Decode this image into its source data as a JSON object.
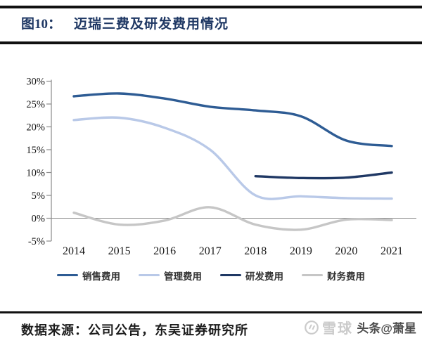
{
  "header": {
    "figure_label": "图10：",
    "title": "迈瑞三费及研发费用情况"
  },
  "chart_data": {
    "type": "line",
    "title": "迈瑞三费及研发费用情况",
    "categories": [
      "2014",
      "2015",
      "2016",
      "2017",
      "2018",
      "2019",
      "2020",
      "2021"
    ],
    "y_ticks": [
      30,
      25,
      20,
      15,
      10,
      5,
      0,
      -5
    ],
    "y_tick_labels": [
      "30%",
      "25%",
      "20%",
      "15%",
      "10%",
      "5%",
      "0%",
      "-5%"
    ],
    "ylim": [
      -5,
      30
    ],
    "unit": "percent",
    "grid": false,
    "zero_line": true,
    "legend_position": "bottom",
    "axis_color": "#8a8a8a",
    "tick_label_color": "#1a1a1a",
    "series": [
      {
        "id": "sales",
        "name": "销售费用",
        "color": "#2E5C94",
        "values": [
          26.7,
          27.3,
          26.2,
          24.4,
          23.6,
          22.3,
          17.0,
          15.8
        ]
      },
      {
        "id": "management",
        "name": "管理费用",
        "color": "#B9C9E8",
        "values": [
          21.5,
          22.0,
          19.8,
          15.0,
          5.0,
          4.8,
          4.4,
          4.3
        ]
      },
      {
        "id": "rd",
        "name": "研发费用",
        "color": "#1F3864",
        "values": [
          null,
          null,
          null,
          null,
          9.2,
          8.8,
          8.9,
          10.0
        ]
      },
      {
        "id": "finance",
        "name": "财务费用",
        "color": "#C6C6C6",
        "values": [
          1.2,
          -1.4,
          -0.5,
          2.4,
          -1.4,
          -2.5,
          -0.3,
          -0.4
        ]
      }
    ]
  },
  "footer": {
    "source": "数据来源：公司公告，东吴证券研究所"
  },
  "watermark": {
    "icon": "xueqiu-logo",
    "brand": "雪球",
    "overlay": "头条@萧星"
  },
  "colors": {
    "title": "#1F3864",
    "rule": "#111111",
    "source_text": "#1c1c1c",
    "watermark_light": "#cbcbcb",
    "watermark_dark": "#4d4d4d"
  }
}
